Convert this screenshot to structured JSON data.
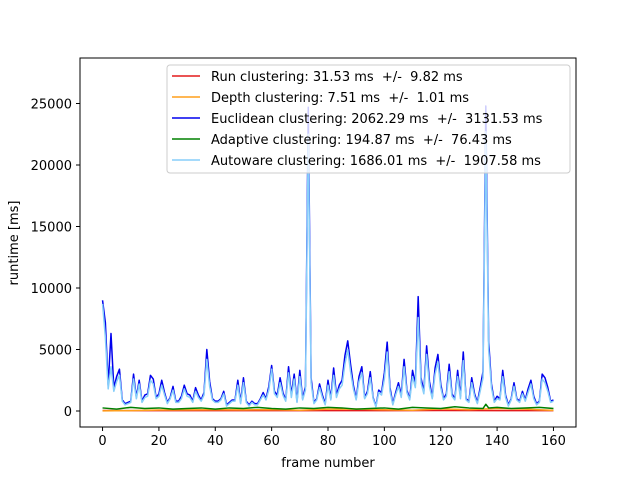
{
  "chart_data": {
    "type": "line",
    "xlabel": "frame number",
    "ylabel": "runtime [ms]",
    "xlim": [
      -8,
      168
    ],
    "ylim": [
      -1300,
      28700
    ],
    "xticks": [
      0,
      20,
      40,
      60,
      80,
      100,
      120,
      140,
      160
    ],
    "yticks": [
      0,
      5000,
      10000,
      15000,
      20000,
      25000
    ],
    "grid": false,
    "legend_position": "top-right",
    "series": [
      {
        "name": "Run clustering: 31.53 ms  +/-  9.82 ms",
        "color": "#e41a1c",
        "x": [
          0,
          20,
          40,
          60,
          80,
          100,
          120,
          140,
          160
        ],
        "y": [
          40,
          30,
          35,
          30,
          35,
          30,
          40,
          35,
          30
        ]
      },
      {
        "name": "Depth clustering: 7.51 ms  +/-  1.01 ms",
        "color": "#ff9f1c",
        "x": [
          0,
          10,
          20,
          30,
          40,
          50,
          60,
          70,
          80,
          90,
          100,
          110,
          120,
          130,
          140,
          150,
          160
        ],
        "y": [
          10,
          30,
          80,
          90,
          100,
          90,
          110,
          60,
          150,
          160,
          100,
          60,
          170,
          110,
          200,
          150,
          50
        ]
      },
      {
        "name": "Euclidean clustering: 2062.29 ms  +/-  3131.53 ms",
        "color": "#0000ee",
        "x": [
          0,
          1,
          2,
          3,
          4,
          5,
          6,
          7,
          8,
          9,
          10,
          11,
          12,
          13,
          14,
          15,
          16,
          17,
          18,
          19,
          20,
          21,
          22,
          23,
          24,
          25,
          26,
          27,
          28,
          29,
          30,
          31,
          32,
          33,
          34,
          35,
          36,
          37,
          38,
          39,
          40,
          41,
          42,
          43,
          44,
          45,
          46,
          47,
          48,
          49,
          50,
          51,
          52,
          53,
          54,
          55,
          56,
          57,
          58,
          59,
          60,
          61,
          62,
          63,
          64,
          65,
          66,
          67,
          68,
          69,
          70,
          71,
          72,
          73,
          74,
          75,
          76,
          77,
          78,
          79,
          80,
          81,
          82,
          83,
          84,
          85,
          86,
          87,
          88,
          89,
          90,
          91,
          92,
          93,
          94,
          95,
          96,
          97,
          98,
          99,
          100,
          101,
          102,
          103,
          104,
          105,
          106,
          107,
          108,
          109,
          110,
          111,
          112,
          113,
          114,
          115,
          116,
          117,
          118,
          119,
          120,
          121,
          122,
          123,
          124,
          125,
          126,
          127,
          128,
          129,
          130,
          131,
          132,
          133,
          134,
          135,
          136,
          137,
          138,
          139,
          140,
          141,
          142,
          143,
          144,
          145,
          146,
          147,
          148,
          149,
          150,
          151,
          152,
          153,
          154,
          155,
          156,
          157,
          158,
          159,
          160
        ],
        "y": [
          9000,
          7200,
          2100,
          6300,
          1900,
          2800,
          3400,
          900,
          600,
          700,
          800,
          3000,
          1100,
          2500,
          800,
          1300,
          1400,
          2900,
          2600,
          1100,
          1400,
          2500,
          1500,
          700,
          1100,
          2000,
          800,
          800,
          1200,
          2100,
          1400,
          1300,
          800,
          1900,
          1300,
          900,
          1500,
          5000,
          2400,
          1000,
          800,
          800,
          1000,
          1600,
          500,
          700,
          900,
          900,
          2500,
          700,
          2700,
          800,
          500,
          800,
          600,
          600,
          1000,
          1500,
          1000,
          2000,
          3700,
          1600,
          1300,
          2700,
          1500,
          900,
          3600,
          1300,
          3000,
          800,
          3300,
          1000,
          2000,
          24700,
          2700,
          700,
          1000,
          2200,
          1300,
          600,
          2500,
          1000,
          3500,
          1300,
          2100,
          2500,
          4500,
          5700,
          3800,
          2100,
          1000,
          2800,
          3600,
          1100,
          1600,
          3200,
          1100,
          400,
          1700,
          1500,
          3100,
          5600,
          1900,
          600,
          1500,
          2300,
          1300,
          4200,
          1700,
          1000,
          3300,
          2200,
          9300,
          2700,
          1600,
          5300,
          2400,
          1100,
          3500,
          4600,
          2200,
          1000,
          1400,
          3800,
          1400,
          1000,
          3300,
          1200,
          4800,
          1000,
          800,
          2700,
          1400,
          700,
          1900,
          3200,
          24800,
          5700,
          2200,
          800,
          1200,
          1000,
          3300,
          1300,
          500,
          1000,
          2300,
          1000,
          800,
          1600,
          900,
          1800,
          2500,
          1200,
          600,
          800,
          3000,
          2700,
          1900,
          800,
          900
        ],
        "z_order": 1
      },
      {
        "name": "Adaptive clustering: 194.87 ms  +/-  76.43 ms",
        "color": "#008000",
        "x": [
          0,
          5,
          10,
          15,
          20,
          25,
          30,
          35,
          40,
          45,
          50,
          55,
          60,
          65,
          70,
          75,
          80,
          85,
          90,
          95,
          100,
          105,
          110,
          115,
          120,
          125,
          130,
          135,
          136,
          137,
          140,
          145,
          150,
          155,
          160
        ],
        "y": [
          250,
          150,
          300,
          200,
          250,
          150,
          200,
          250,
          150,
          250,
          200,
          300,
          200,
          150,
          250,
          200,
          300,
          250,
          150,
          200,
          250,
          150,
          300,
          250,
          200,
          350,
          250,
          200,
          550,
          250,
          300,
          200,
          250,
          300,
          200
        ]
      },
      {
        "name": "Autoware clustering: 1686.01 ms  +/-  1907.58 ms",
        "color": "#87cefa",
        "x": [
          0,
          1,
          2,
          3,
          4,
          5,
          6,
          7,
          8,
          9,
          10,
          11,
          12,
          13,
          14,
          15,
          16,
          17,
          18,
          19,
          20,
          21,
          22,
          23,
          24,
          25,
          26,
          27,
          28,
          29,
          30,
          31,
          32,
          33,
          34,
          35,
          36,
          37,
          38,
          39,
          40,
          41,
          42,
          43,
          44,
          45,
          46,
          47,
          48,
          49,
          50,
          51,
          52,
          53,
          54,
          55,
          56,
          57,
          58,
          59,
          60,
          61,
          62,
          63,
          64,
          65,
          66,
          67,
          68,
          69,
          70,
          71,
          72,
          73,
          74,
          75,
          76,
          77,
          78,
          79,
          80,
          81,
          82,
          83,
          84,
          85,
          86,
          87,
          88,
          89,
          90,
          91,
          92,
          93,
          94,
          95,
          96,
          97,
          98,
          99,
          100,
          101,
          102,
          103,
          104,
          105,
          106,
          107,
          108,
          109,
          110,
          111,
          112,
          113,
          114,
          115,
          116,
          117,
          118,
          119,
          120,
          121,
          122,
          123,
          124,
          125,
          126,
          127,
          128,
          129,
          130,
          131,
          132,
          133,
          134,
          135,
          136,
          137,
          138,
          139,
          140,
          141,
          142,
          143,
          144,
          145,
          146,
          147,
          148,
          149,
          150,
          151,
          152,
          153,
          154,
          155,
          156,
          157,
          158,
          159,
          160
        ],
        "y": [
          8700,
          6000,
          1800,
          3600,
          1600,
          2400,
          2900,
          800,
          500,
          600,
          700,
          2600,
          1000,
          2200,
          700,
          1100,
          1200,
          2500,
          2200,
          1000,
          1200,
          2100,
          1300,
          600,
          1000,
          1700,
          700,
          700,
          1000,
          1800,
          1200,
          1100,
          700,
          1600,
          1100,
          800,
          1300,
          4200,
          2000,
          900,
          700,
          700,
          900,
          1400,
          400,
          600,
          800,
          800,
          2100,
          600,
          2300,
          700,
          400,
          700,
          500,
          500,
          900,
          1300,
          900,
          1700,
          3400,
          1400,
          1100,
          2300,
          1300,
          800,
          3100,
          1100,
          2600,
          700,
          2800,
          900,
          1700,
          22500,
          2300,
          600,
          900,
          1900,
          1100,
          500,
          2100,
          900,
          2900,
          1100,
          1800,
          2100,
          3800,
          5000,
          3200,
          1800,
          900,
          2400,
          3100,
          1000,
          1400,
          2700,
          1000,
          350,
          1500,
          1300,
          2600,
          4800,
          1600,
          500,
          1300,
          2000,
          1100,
          3600,
          1500,
          900,
          2800,
          1900,
          7600,
          2300,
          1400,
          4600,
          2000,
          1000,
          3000,
          4000,
          1900,
          900,
          1200,
          3200,
          1200,
          900,
          2800,
          1000,
          4100,
          900,
          700,
          2300,
          1200,
          600,
          1600,
          2700,
          22700,
          5000,
          1900,
          700,
          1000,
          900,
          2800,
          1100,
          400,
          900,
          2000,
          900,
          700,
          1400,
          800,
          1500,
          2200,
          1000,
          500,
          700,
          2600,
          2300,
          1600,
          700,
          800
        ],
        "z_order": 2
      }
    ]
  }
}
